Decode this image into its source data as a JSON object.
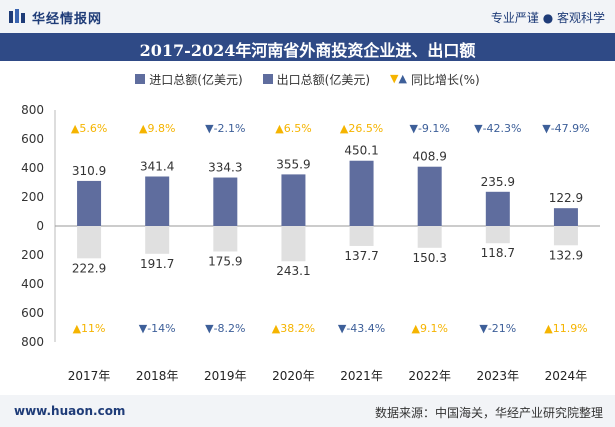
{
  "header": {
    "brand": "华经情报网",
    "tagline": "专业严谨 ● 客观科学",
    "title": "2017-2024年河南省外商投资企业进、出口额"
  },
  "legend": {
    "import_label": "进口总额(亿美元)",
    "export_label": "出口总额(亿美元)",
    "growth_label": "同比增长(%)"
  },
  "footer": {
    "site": "www.huaon.com",
    "source": "数据来源：中国海关，华经产业研究院整理"
  },
  "colors": {
    "export_bar": "#5f6d9e",
    "import_bar": "#e0e0e0",
    "up": "#f5b400",
    "down": "#3d5f99"
  },
  "chart_data": {
    "type": "bar",
    "categories": [
      "2017年",
      "2018年",
      "2019年",
      "2020年",
      "2021年",
      "2022年",
      "2023年",
      "2024年"
    ],
    "series": [
      {
        "name": "出口总额(亿美元)",
        "values": [
          310.9,
          341.4,
          334.3,
          355.9,
          450.1,
          408.9,
          235.9,
          122.9
        ],
        "direction": "up"
      },
      {
        "name": "进口总额(亿美元)",
        "values": [
          222.9,
          191.7,
          175.9,
          243.1,
          137.7,
          150.3,
          118.7,
          132.9
        ],
        "direction": "down"
      }
    ],
    "export_growth": [
      "5.6%",
      "9.8%",
      "-2.1%",
      "6.5%",
      "26.5%",
      "-9.1%",
      "-42.3%",
      "-47.9%"
    ],
    "import_growth": [
      "11%",
      "-14%",
      "-8.2%",
      "38.2%",
      "-43.4%",
      "9.1%",
      "-21%",
      "11.9%"
    ],
    "yticks": [
      "800",
      "600",
      "400",
      "200",
      "0",
      "200",
      "400",
      "600",
      "800"
    ],
    "ylim": [
      -800,
      800
    ],
    "grid": false
  }
}
